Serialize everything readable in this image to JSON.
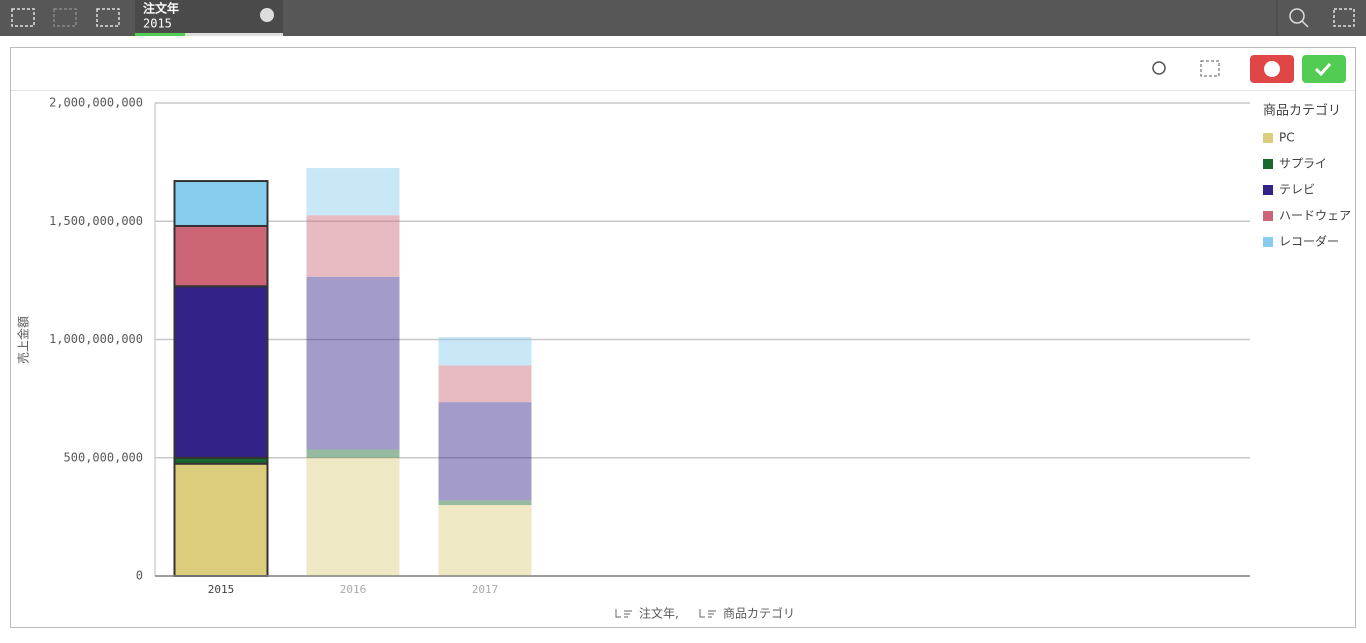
{
  "toolbar": {
    "selection": {
      "field": "注文年",
      "value": "2015"
    }
  },
  "chart_data": {
    "type": "stacked_bar",
    "ylabel": "売上金額",
    "xlabel_parts": [
      "注文年,",
      "商品カテゴリ"
    ],
    "legend_title": "商品カテゴリ",
    "legend": "right",
    "categories": [
      "2015",
      "2016",
      "2017"
    ],
    "selected": [
      "2015"
    ],
    "series": [
      {
        "name": "PC",
        "color": "#dccd7d",
        "values": [
          475000000,
          500000000,
          300000000
        ]
      },
      {
        "name": "サプライ",
        "color": "#17692f",
        "values": [
          25000000,
          35000000,
          20000000
        ]
      },
      {
        "name": "テレビ",
        "color": "#332288",
        "values": [
          725000000,
          730000000,
          415000000
        ]
      },
      {
        "name": "ハードウェア",
        "color": "#cc6677",
        "values": [
          255000000,
          260000000,
          155000000
        ]
      },
      {
        "name": "レコーダー",
        "color": "#88ccee",
        "values": [
          190000000,
          200000000,
          120000000
        ]
      }
    ],
    "ylim": [
      0,
      2000000000
    ],
    "yticks": [
      0,
      {
        "value": 500000000,
        "label": "500,000,000"
      },
      {
        "value": 1000000000,
        "label": "1,000,000,000"
      },
      {
        "value": 1500000000,
        "label": "1,500,000,000"
      },
      {
        "value": 2000000000,
        "label": "2,000,000,000"
      }
    ],
    "grid": true
  }
}
